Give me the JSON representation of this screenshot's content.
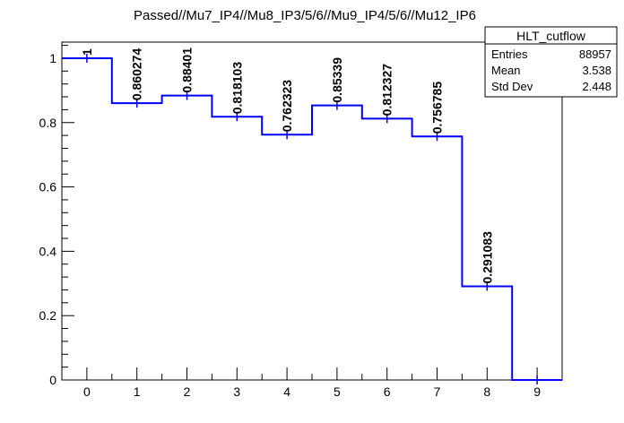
{
  "chart_data": {
    "type": "step-histogram",
    "title": "Passed//Mu7_IP4//Mu8_IP3/5/6//Mu9_IP4/5/6//Mu12_IP6",
    "xlabel": "",
    "ylabel": "",
    "xlim": [
      -0.5,
      9.5
    ],
    "ylim": [
      0,
      1.05
    ],
    "x_ticks": [
      0,
      1,
      2,
      3,
      4,
      5,
      6,
      7,
      8,
      9
    ],
    "y_ticks": [
      0,
      0.2,
      0.4,
      0.6,
      0.8,
      1
    ],
    "y_tick_labels": [
      "0",
      "0.2",
      "0.4",
      "0.6",
      "0.8",
      "1"
    ],
    "bins": [
      0,
      1,
      2,
      3,
      4,
      5,
      6,
      7,
      8,
      9
    ],
    "values": [
      1,
      0.860274,
      0.88401,
      0.818103,
      0.762323,
      0.85339,
      0.812327,
      0.756785,
      0.291083,
      0
    ],
    "labels": [
      "1",
      "0.860274",
      "0.88401",
      "0.818103",
      "0.762323",
      "0.85339",
      "0.812327",
      "0.756785",
      "0.291083",
      ""
    ],
    "line_color": "#0000ff",
    "grid": false,
    "legend": "none"
  },
  "stats_box": {
    "name": "HLT_cutflow",
    "rows": [
      {
        "label": "Entries",
        "value": "88957"
      },
      {
        "label": "Mean",
        "value": "3.538"
      },
      {
        "label": "Std Dev",
        "value": "2.448"
      }
    ],
    "placement": "top-right"
  }
}
